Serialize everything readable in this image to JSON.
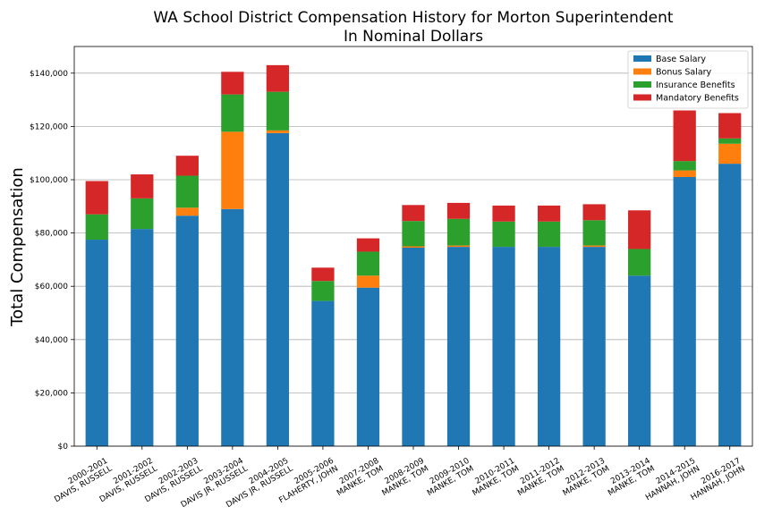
{
  "chart_data": {
    "type": "bar",
    "stacked": true,
    "title_line1": "WA School District Compensation History for Morton Superintendent",
    "title_line2": "In Nominal Dollars",
    "ylabel": "Total Compensation",
    "xlabel": "",
    "ylim": [
      0,
      150000
    ],
    "grid": "horizontal",
    "legend_position": "top-right",
    "yticks": [
      0,
      20000,
      40000,
      60000,
      80000,
      100000,
      120000,
      140000
    ],
    "ytick_labels": [
      "$0",
      "$20,000",
      "$40,000",
      "$60,000",
      "$80,000",
      "$100,000",
      "$120,000",
      "$140,000"
    ],
    "categories": [
      {
        "year": "2000-2001",
        "name": "DAVIS, RUSSELL"
      },
      {
        "year": "2001-2002",
        "name": "DAVIS, RUSSELL"
      },
      {
        "year": "2002-2003",
        "name": "DAVIS, RUSSELL"
      },
      {
        "year": "2003-2004",
        "name": "DAVIS JR, RUSSELL"
      },
      {
        "year": "2004-2005",
        "name": "DAVIS JR, RUSSELL"
      },
      {
        "year": "2005-2006",
        "name": "FLAHERTY, JOHN"
      },
      {
        "year": "2007-2008",
        "name": "MANKE, TOM"
      },
      {
        "year": "2008-2009",
        "name": "MANKE, TOM"
      },
      {
        "year": "2009-2010",
        "name": "MANKE, TOM"
      },
      {
        "year": "2010-2011",
        "name": "MANKE, TOM"
      },
      {
        "year": "2011-2012",
        "name": "MANKE, TOM"
      },
      {
        "year": "2012-2013",
        "name": "MANKE, TOM"
      },
      {
        "year": "2013-2014",
        "name": "MANKE, TOM"
      },
      {
        "year": "2014-2015",
        "name": "HANNAH, JOHN"
      },
      {
        "year": "2016-2017",
        "name": "HANNAH, JOHN"
      }
    ],
    "series": [
      {
        "name": "Base Salary",
        "color": "#1f77b4",
        "values": [
          77500,
          81500,
          86500,
          89000,
          117500,
          54500,
          59500,
          74500,
          74800,
          74800,
          74800,
          74800,
          64000,
          101000,
          106000
        ]
      },
      {
        "name": "Bonus Salary",
        "color": "#ff7f0e",
        "values": [
          0,
          0,
          3000,
          29000,
          1000,
          0,
          4500,
          500,
          500,
          0,
          0,
          500,
          0,
          2500,
          7500
        ]
      },
      {
        "name": "Insurance Benefits",
        "color": "#2ca02c",
        "values": [
          9500,
          11500,
          12000,
          14000,
          14500,
          7500,
          9000,
          9500,
          10000,
          9500,
          9500,
          9500,
          10000,
          3500,
          2000
        ]
      },
      {
        "name": "Mandatory Benefits",
        "color": "#d62728",
        "values": [
          12500,
          9000,
          7500,
          8500,
          10000,
          5000,
          5000,
          6000,
          6000,
          6000,
          6000,
          6000,
          14500,
          19000,
          9500
        ]
      }
    ]
  }
}
